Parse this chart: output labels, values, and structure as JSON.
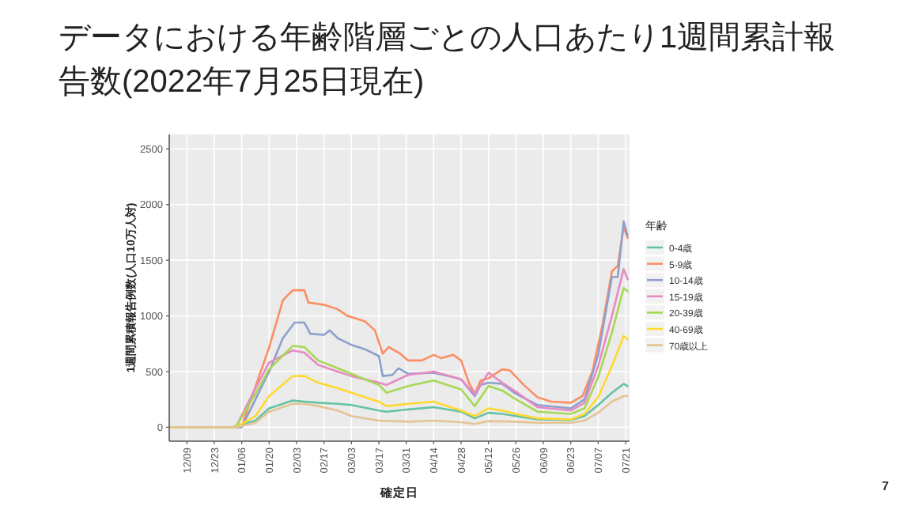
{
  "chart_data": {
    "type": "line",
    "title": "データにおける年齢階層ごとの人口あたり1週間累計報告数(2022年7月25日現在)",
    "xlabel": "確定日",
    "ylabel": "1週間累積報告例数(人口10万人対)",
    "legend_title": "年齢",
    "annotations": [
      "7"
    ],
    "xlim": [
      "2021-11-30",
      "2022-07-23"
    ],
    "ylim": [
      -125,
      2630
    ],
    "xticks": [
      {
        "value": "2021-12-09",
        "label": "12/09"
      },
      {
        "value": "2021-12-23",
        "label": "12/23"
      },
      {
        "value": "2022-01-06",
        "label": "01/06"
      },
      {
        "value": "2022-01-20",
        "label": "01/20"
      },
      {
        "value": "2022-02-03",
        "label": "02/03"
      },
      {
        "value": "2022-02-17",
        "label": "02/17"
      },
      {
        "value": "2022-03-03",
        "label": "03/03"
      },
      {
        "value": "2022-03-17",
        "label": "03/17"
      },
      {
        "value": "2022-03-31",
        "label": "03/31"
      },
      {
        "value": "2022-04-14",
        "label": "04/14"
      },
      {
        "value": "2022-04-28",
        "label": "04/28"
      },
      {
        "value": "2022-05-12",
        "label": "05/12"
      },
      {
        "value": "2022-05-26",
        "label": "05/26"
      },
      {
        "value": "2022-06-09",
        "label": "06/09"
      },
      {
        "value": "2022-06-23",
        "label": "06/23"
      },
      {
        "value": "2022-07-07",
        "label": "07/07"
      },
      {
        "value": "2022-07-21",
        "label": "07/21"
      }
    ],
    "yticks": [
      0,
      500,
      1000,
      1500,
      2000,
      2500
    ],
    "grid": true,
    "legend": "right",
    "line_style": "solid",
    "series": [
      {
        "name": "0-4歳",
        "color": "#66c2a5",
        "x": [
          "2021-12-01",
          "2022-01-01",
          "2022-01-13",
          "2022-01-20",
          "2022-02-01",
          "2022-02-07",
          "2022-02-14",
          "2022-02-24",
          "2022-03-03",
          "2022-03-17",
          "2022-03-21",
          "2022-04-01",
          "2022-04-14",
          "2022-04-28",
          "2022-05-05",
          "2022-05-12",
          "2022-05-19",
          "2022-05-26",
          "2022-06-06",
          "2022-06-23",
          "2022-06-30",
          "2022-07-07",
          "2022-07-14",
          "2022-07-20",
          "2022-07-22"
        ],
        "values": [
          0,
          0,
          60,
          170,
          240,
          230,
          220,
          210,
          200,
          150,
          140,
          160,
          180,
          140,
          80,
          130,
          120,
          100,
          70,
          65,
          100,
          200,
          310,
          390,
          370
        ]
      },
      {
        "name": "5-9歳",
        "color": "#fc8d62",
        "x": [
          "2021-12-01",
          "2022-01-03",
          "2022-01-06",
          "2022-01-20",
          "2022-01-27",
          "2022-02-01",
          "2022-02-07",
          "2022-02-09",
          "2022-02-17",
          "2022-02-24",
          "2022-03-01",
          "2022-03-10",
          "2022-03-15",
          "2022-03-19",
          "2022-03-22",
          "2022-03-28",
          "2022-04-01",
          "2022-04-08",
          "2022-04-14",
          "2022-04-18",
          "2022-04-24",
          "2022-04-28",
          "2022-05-02",
          "2022-05-05",
          "2022-05-08",
          "2022-05-12",
          "2022-05-19",
          "2022-05-23",
          "2022-05-30",
          "2022-06-06",
          "2022-06-13",
          "2022-06-23",
          "2022-06-29",
          "2022-07-04",
          "2022-07-09",
          "2022-07-14",
          "2022-07-17",
          "2022-07-20",
          "2022-07-22"
        ],
        "values": [
          0,
          0,
          10,
          717,
          1140,
          1230,
          1230,
          1120,
          1100,
          1060,
          1000,
          950,
          870,
          660,
          720,
          660,
          600,
          600,
          650,
          620,
          650,
          600,
          400,
          300,
          420,
          440,
          520,
          510,
          380,
          270,
          230,
          220,
          280,
          500,
          900,
          1400,
          1450,
          1800,
          1700
        ]
      },
      {
        "name": "10-14歳",
        "color": "#8da0cb",
        "x": [
          "2021-12-01",
          "2022-01-06",
          "2022-01-20",
          "2022-01-27",
          "2022-02-02",
          "2022-02-07",
          "2022-02-10",
          "2022-02-17",
          "2022-02-20",
          "2022-02-24",
          "2022-03-03",
          "2022-03-10",
          "2022-03-17",
          "2022-03-19",
          "2022-03-24",
          "2022-03-27",
          "2022-04-01",
          "2022-04-14",
          "2022-04-24",
          "2022-04-28",
          "2022-05-05",
          "2022-05-08",
          "2022-05-12",
          "2022-05-19",
          "2022-05-26",
          "2022-06-06",
          "2022-06-23",
          "2022-06-30",
          "2022-07-07",
          "2022-07-14",
          "2022-07-17",
          "2022-07-20",
          "2022-07-22"
        ],
        "values": [
          0,
          0,
          500,
          800,
          940,
          940,
          840,
          830,
          870,
          800,
          740,
          700,
          640,
          460,
          470,
          530,
          480,
          490,
          450,
          430,
          280,
          380,
          400,
          390,
          300,
          200,
          170,
          250,
          650,
          1350,
          1350,
          1850,
          1720
        ]
      },
      {
        "name": "15-19歳",
        "color": "#e78ac3",
        "x": [
          "2021-12-01",
          "2022-01-03",
          "2022-01-13",
          "2022-01-20",
          "2022-02-01",
          "2022-02-07",
          "2022-02-14",
          "2022-02-24",
          "2022-03-03",
          "2022-03-17",
          "2022-03-21",
          "2022-04-01",
          "2022-04-14",
          "2022-04-28",
          "2022-05-05",
          "2022-05-12",
          "2022-05-19",
          "2022-05-26",
          "2022-06-06",
          "2022-06-23",
          "2022-06-30",
          "2022-07-07",
          "2022-07-14",
          "2022-07-20",
          "2022-07-22"
        ],
        "values": [
          0,
          0,
          350,
          580,
          690,
          670,
          560,
          500,
          460,
          400,
          380,
          470,
          500,
          430,
          300,
          490,
          400,
          320,
          180,
          150,
          220,
          550,
          1000,
          1420,
          1330
        ]
      },
      {
        "name": "20-39歳",
        "color": "#a6d854",
        "x": [
          "2021-12-01",
          "2022-01-03",
          "2022-01-13",
          "2022-01-20",
          "2022-02-01",
          "2022-02-07",
          "2022-02-14",
          "2022-02-24",
          "2022-03-03",
          "2022-03-17",
          "2022-03-21",
          "2022-04-01",
          "2022-04-14",
          "2022-04-28",
          "2022-05-05",
          "2022-05-12",
          "2022-05-19",
          "2022-05-26",
          "2022-06-06",
          "2022-06-23",
          "2022-06-30",
          "2022-07-07",
          "2022-07-14",
          "2022-07-20",
          "2022-07-22"
        ],
        "values": [
          0,
          0,
          300,
          520,
          730,
          720,
          600,
          530,
          480,
          380,
          310,
          370,
          420,
          340,
          190,
          370,
          330,
          250,
          140,
          120,
          170,
          450,
          850,
          1250,
          1220
        ]
      },
      {
        "name": "40-69歳",
        "color": "#ffd92f",
        "x": [
          "2021-12-01",
          "2022-01-03",
          "2022-01-13",
          "2022-01-20",
          "2022-02-01",
          "2022-02-07",
          "2022-02-14",
          "2022-02-24",
          "2022-03-03",
          "2022-03-17",
          "2022-03-21",
          "2022-04-01",
          "2022-04-14",
          "2022-04-28",
          "2022-05-05",
          "2022-05-12",
          "2022-05-19",
          "2022-05-26",
          "2022-06-06",
          "2022-06-23",
          "2022-06-30",
          "2022-07-07",
          "2022-07-14",
          "2022-07-20",
          "2022-07-22"
        ],
        "values": [
          0,
          0,
          100,
          280,
          460,
          460,
          400,
          350,
          310,
          230,
          190,
          210,
          230,
          150,
          100,
          170,
          150,
          120,
          80,
          70,
          120,
          270,
          550,
          820,
          790
        ]
      },
      {
        "name": "70歳以上",
        "color": "#e5c494",
        "x": [
          "2021-12-01",
          "2022-01-03",
          "2022-01-13",
          "2022-01-20",
          "2022-02-01",
          "2022-02-07",
          "2022-02-14",
          "2022-02-24",
          "2022-03-03",
          "2022-03-17",
          "2022-04-01",
          "2022-04-14",
          "2022-04-28",
          "2022-05-05",
          "2022-05-12",
          "2022-05-26",
          "2022-06-06",
          "2022-06-23",
          "2022-06-30",
          "2022-07-07",
          "2022-07-14",
          "2022-07-20",
          "2022-07-22"
        ],
        "values": [
          0,
          0,
          40,
          140,
          210,
          210,
          190,
          150,
          100,
          60,
          50,
          60,
          45,
          30,
          55,
          50,
          40,
          40,
          60,
          130,
          230,
          280,
          280
        ]
      }
    ]
  }
}
